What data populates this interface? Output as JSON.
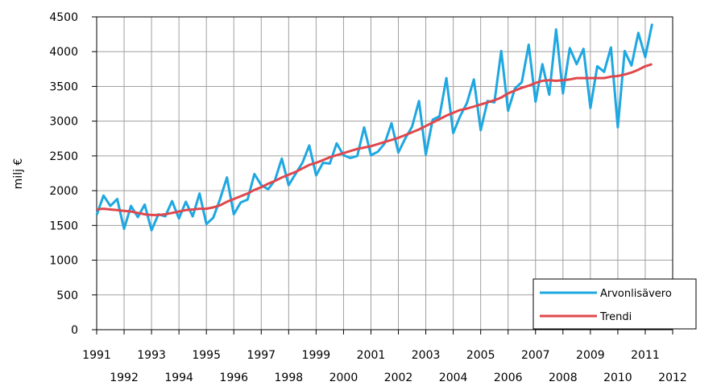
{
  "chart_data": {
    "type": "line",
    "ylabel": "milj €",
    "xlabel": "",
    "title": "",
    "ylim": [
      0,
      4500
    ],
    "xlim": [
      1991,
      2012
    ],
    "yticks": [
      0,
      500,
      1000,
      1500,
      2000,
      2500,
      3000,
      3500,
      4000,
      4500
    ],
    "yticklabels": [
      "0",
      "500",
      "1000",
      "1500",
      "2000",
      "2500",
      "3000",
      "3500",
      "4000",
      "4500"
    ],
    "xticks": [
      1991,
      1992,
      1993,
      1994,
      1995,
      1996,
      1997,
      1998,
      1999,
      2000,
      2001,
      2002,
      2003,
      2004,
      2005,
      2006,
      2007,
      2008,
      2009,
      2010,
      2011,
      2012
    ],
    "xticklabels": [
      "1991",
      "1992",
      "1993",
      "1994",
      "1995",
      "1996",
      "1997",
      "1998",
      "1999",
      "2000",
      "2001",
      "2002",
      "2003",
      "2004",
      "2005",
      "2006",
      "2007",
      "2008",
      "2009",
      "2010",
      "2011",
      "2012"
    ],
    "grid": true,
    "legend_position": "bottom-right",
    "x_start": 1991,
    "x_step": 0.25,
    "series": [
      {
        "name": "Arvonlisävero",
        "color": "#1ea7e1",
        "values": [
          1650,
          1930,
          1780,
          1880,
          1450,
          1780,
          1620,
          1800,
          1430,
          1660,
          1630,
          1850,
          1600,
          1840,
          1630,
          1960,
          1520,
          1610,
          1880,
          2190,
          1660,
          1830,
          1870,
          2240,
          2080,
          2020,
          2150,
          2460,
          2080,
          2240,
          2400,
          2650,
          2220,
          2400,
          2390,
          2680,
          2510,
          2470,
          2500,
          2910,
          2510,
          2560,
          2680,
          2970,
          2550,
          2750,
          2920,
          3290,
          2520,
          3020,
          3070,
          3620,
          2830,
          3070,
          3260,
          3600,
          2870,
          3290,
          3270,
          4010,
          3150,
          3470,
          3560,
          4100,
          3280,
          3820,
          3380,
          4320,
          3400,
          4050,
          3820,
          4040,
          3190,
          3790,
          3710,
          4060,
          2910,
          4010,
          3800,
          4270,
          3920,
          4400
        ]
      },
      {
        "name": "Trendi",
        "color": "#e0474c",
        "values": [
          1730,
          1740,
          1730,
          1720,
          1710,
          1700,
          1680,
          1660,
          1650,
          1650,
          1660,
          1680,
          1700,
          1720,
          1730,
          1740,
          1740,
          1760,
          1790,
          1840,
          1880,
          1920,
          1960,
          2010,
          2050,
          2100,
          2140,
          2190,
          2230,
          2270,
          2320,
          2370,
          2400,
          2440,
          2480,
          2510,
          2540,
          2570,
          2600,
          2620,
          2640,
          2670,
          2700,
          2730,
          2760,
          2800,
          2840,
          2880,
          2930,
          2980,
          3030,
          3080,
          3120,
          3160,
          3180,
          3210,
          3240,
          3270,
          3300,
          3340,
          3400,
          3440,
          3480,
          3510,
          3550,
          3580,
          3590,
          3580,
          3590,
          3600,
          3620,
          3620,
          3620,
          3620,
          3620,
          3640,
          3650,
          3670,
          3700,
          3740,
          3790,
          3820
        ]
      }
    ]
  }
}
